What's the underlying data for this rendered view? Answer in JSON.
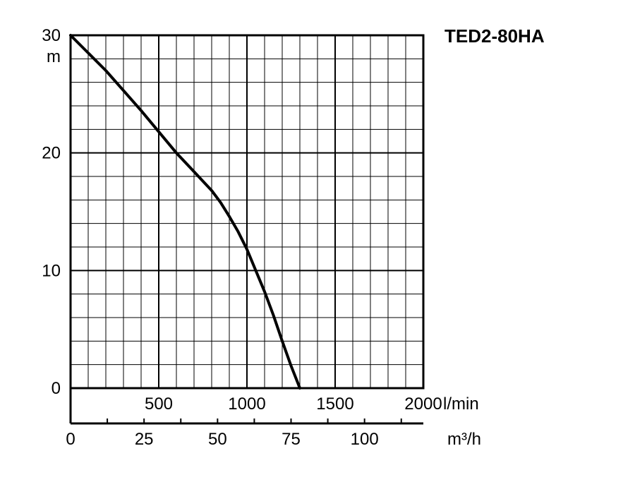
{
  "chart_data": {
    "type": "line",
    "title": "TED2-80HA",
    "y_unit": "m",
    "x_unit_primary": "l/min",
    "x_unit_secondary": "m³/h",
    "ylim": [
      0,
      30
    ],
    "xlim": [
      0,
      2000
    ],
    "x2lim": [
      0,
      120
    ],
    "y_ticks": [
      "30",
      "20",
      "10",
      "0"
    ],
    "y_tick_values": [
      30,
      20,
      10,
      0
    ],
    "x_ticks": [
      "500",
      "1000",
      "1500",
      "2000"
    ],
    "x_tick_values": [
      500,
      1000,
      1500,
      2000
    ],
    "x2_ticks": [
      "0",
      "25",
      "50",
      "75",
      "100"
    ],
    "x2_tick_values": [
      0,
      25,
      50,
      75,
      100
    ],
    "grid": true,
    "series": [
      {
        "x": [
          0,
          100,
          200,
          300,
          400,
          500,
          600,
          700,
          800,
          850,
          900,
          950,
          1000,
          1050,
          1100,
          1150,
          1200,
          1250,
          1300
        ],
        "y": [
          30,
          28.5,
          27,
          25.3,
          23.6,
          21.8,
          20,
          18.4,
          16.8,
          15.8,
          14.6,
          13.3,
          11.8,
          10,
          8.2,
          6.2,
          4,
          1.9,
          0
        ]
      }
    ]
  }
}
